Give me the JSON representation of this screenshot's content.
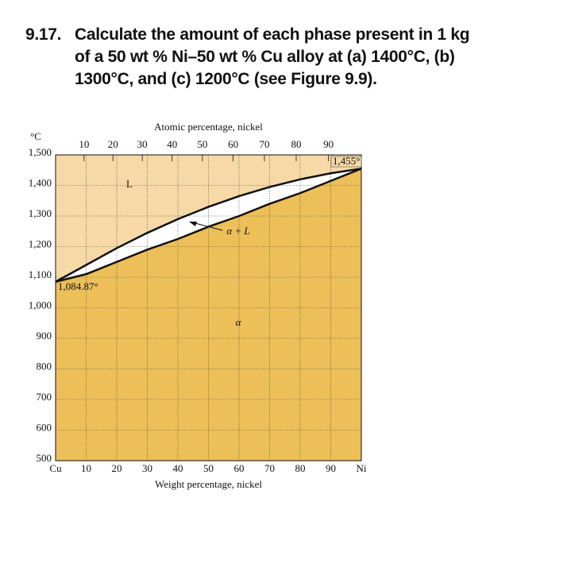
{
  "problem": {
    "number": "9.17.",
    "lines": [
      "Calculate the amount of each phase present in 1 kg",
      "of a 50 wt % Ni–50 wt % Cu alloy at (a) 1400°C, (b)",
      "1300°C, and (c) 1200°C (see Figure 9.9)."
    ]
  },
  "chart_data": {
    "type": "phase-diagram",
    "x_label": "Weight percentage, nickel",
    "x2_label": "Atomic percentage, nickel",
    "y_label": "°C",
    "xlim": [
      0,
      100
    ],
    "xticks": [
      {
        "value": 0,
        "label": "Cu"
      },
      10,
      20,
      30,
      40,
      50,
      60,
      70,
      80,
      90,
      {
        "value": 100,
        "label": "Ni"
      }
    ],
    "x2ticks": [
      10,
      20,
      30,
      40,
      50,
      60,
      70,
      80,
      90
    ],
    "ylim": [
      500,
      1500
    ],
    "yticks": [
      500,
      600,
      700,
      800,
      900,
      {
        "value": 1000,
        "label": "1,000"
      },
      {
        "value": 1100,
        "label": "1,100"
      },
      {
        "value": 1200,
        "label": "1,200"
      },
      {
        "value": 1300,
        "label": "1,300"
      },
      {
        "value": 1400,
        "label": "1,400"
      },
      {
        "value": 1500,
        "label": "1,500"
      }
    ],
    "grid": true,
    "series": [
      {
        "color": "#111111",
        "x": [
          0,
          10,
          20,
          30,
          40,
          50,
          60,
          70,
          80,
          90,
          100
        ],
        "values": [
          1085,
          1140,
          1195,
          1245,
          1290,
          1330,
          1365,
          1395,
          1420,
          1440,
          1455
        ]
      },
      {
        "color": "#111111",
        "x": [
          0,
          10,
          20,
          30,
          40,
          50,
          60,
          70,
          80,
          90,
          100
        ],
        "values": [
          1085,
          1110,
          1150,
          1190,
          1225,
          1265,
          1300,
          1340,
          1375,
          1415,
          1455
        ]
      }
    ],
    "regions": [
      {
        "label": "L",
        "color": "#f6d9a6"
      },
      {
        "label": "α + L",
        "color": "#ffffff"
      },
      {
        "label": "α",
        "color": "#ecbf58"
      }
    ],
    "annotations": [
      "1,084.87°",
      "1,455°"
    ]
  }
}
